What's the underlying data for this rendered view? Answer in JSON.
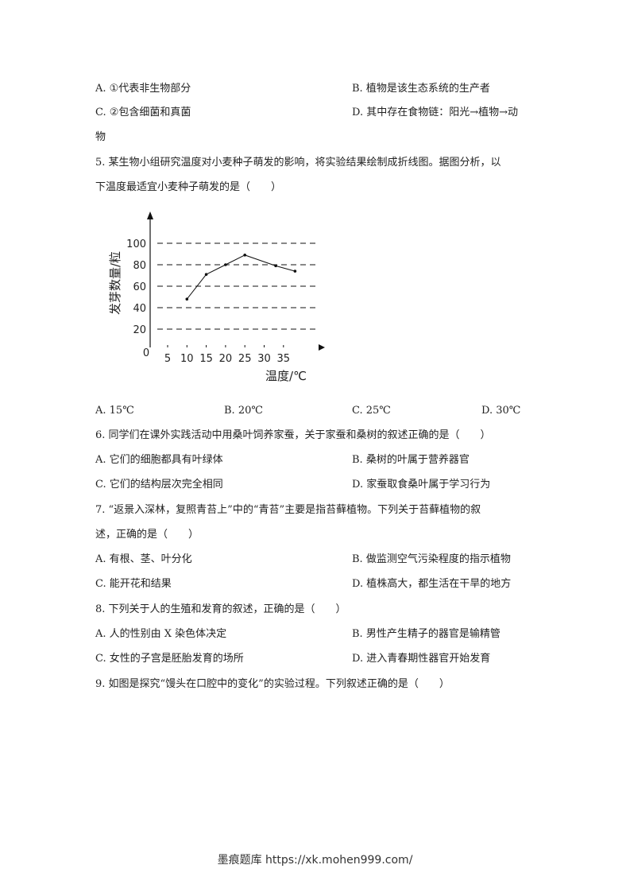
{
  "q4": {
    "A": "A. ①代表非生物部分",
    "B": "B. 植物是该生态系统的生产者",
    "C": "C. ②包含细菌和真菌",
    "D": "D. 其中存在食物链：阳光→植物→动",
    "D_cont": "物"
  },
  "q5": {
    "stem1": "5. 某生物小组研究温度对小麦种子萌发的影响，将实验结果绘制成折线图。据图分析，以",
    "stem2": "下温度最适宜小麦种子萌发的是（　　）",
    "A": "A. 15℃",
    "B": "B. 20℃",
    "C": "C. 25℃",
    "D": "D. 30℃"
  },
  "chart_data": {
    "type": "line",
    "xlabel": "温度/℃",
    "ylabel": "发芽数量/粒",
    "origin_label": "0",
    "x_ticks": [
      "5",
      "10",
      "15",
      "20",
      "25",
      "30",
      "35"
    ],
    "y_ticks": [
      "20",
      "40",
      "60",
      "80",
      "100"
    ],
    "grid": "dashed horizontal",
    "x": [
      10,
      15,
      20,
      25,
      33,
      38
    ],
    "y": [
      48,
      71,
      80,
      89,
      79,
      74
    ]
  },
  "q6": {
    "stem": "6. 同学们在课外实践活动中用桑叶饲养家蚕，关于家蚕和桑树的叙述正确的是（　　）",
    "A": "A. 它们的细胞都具有叶绿体",
    "B": "B. 桑树的叶属于营养器官",
    "C": "C. 它们的结构层次完全相同",
    "D": "D. 家蚕取食桑叶属于学习行为"
  },
  "q7": {
    "stem1": "7. “返景入深林，复照青苔上”中的“青苔”主要是指苔藓植物。下列关于苔藓植物的叙",
    "stem2": "述，正确的是（　　）",
    "A": "A. 有根、茎、叶分化",
    "B": "B. 做监测空气污染程度的指示植物",
    "C": "C. 能开花和结果",
    "D": "D. 植株高大，都生活在干旱的地方"
  },
  "q8": {
    "stem": "8. 下列关于人的生殖和发育的叙述，正确的是（　　）",
    "A": "A. 人的性别由 X 染色体决定",
    "B": "B. 男性产生精子的器官是输精管",
    "C": "C. 女性的子宫是胚胎发育的场所",
    "D": "D. 进入青春期性器官开始发育"
  },
  "q9": {
    "stem": "9. 如图是探究“馒头在口腔中的变化”的实验过程。下列叙述正确的是（　　）"
  },
  "footer": "墨痕题库 https://xk.mohen999.com/"
}
